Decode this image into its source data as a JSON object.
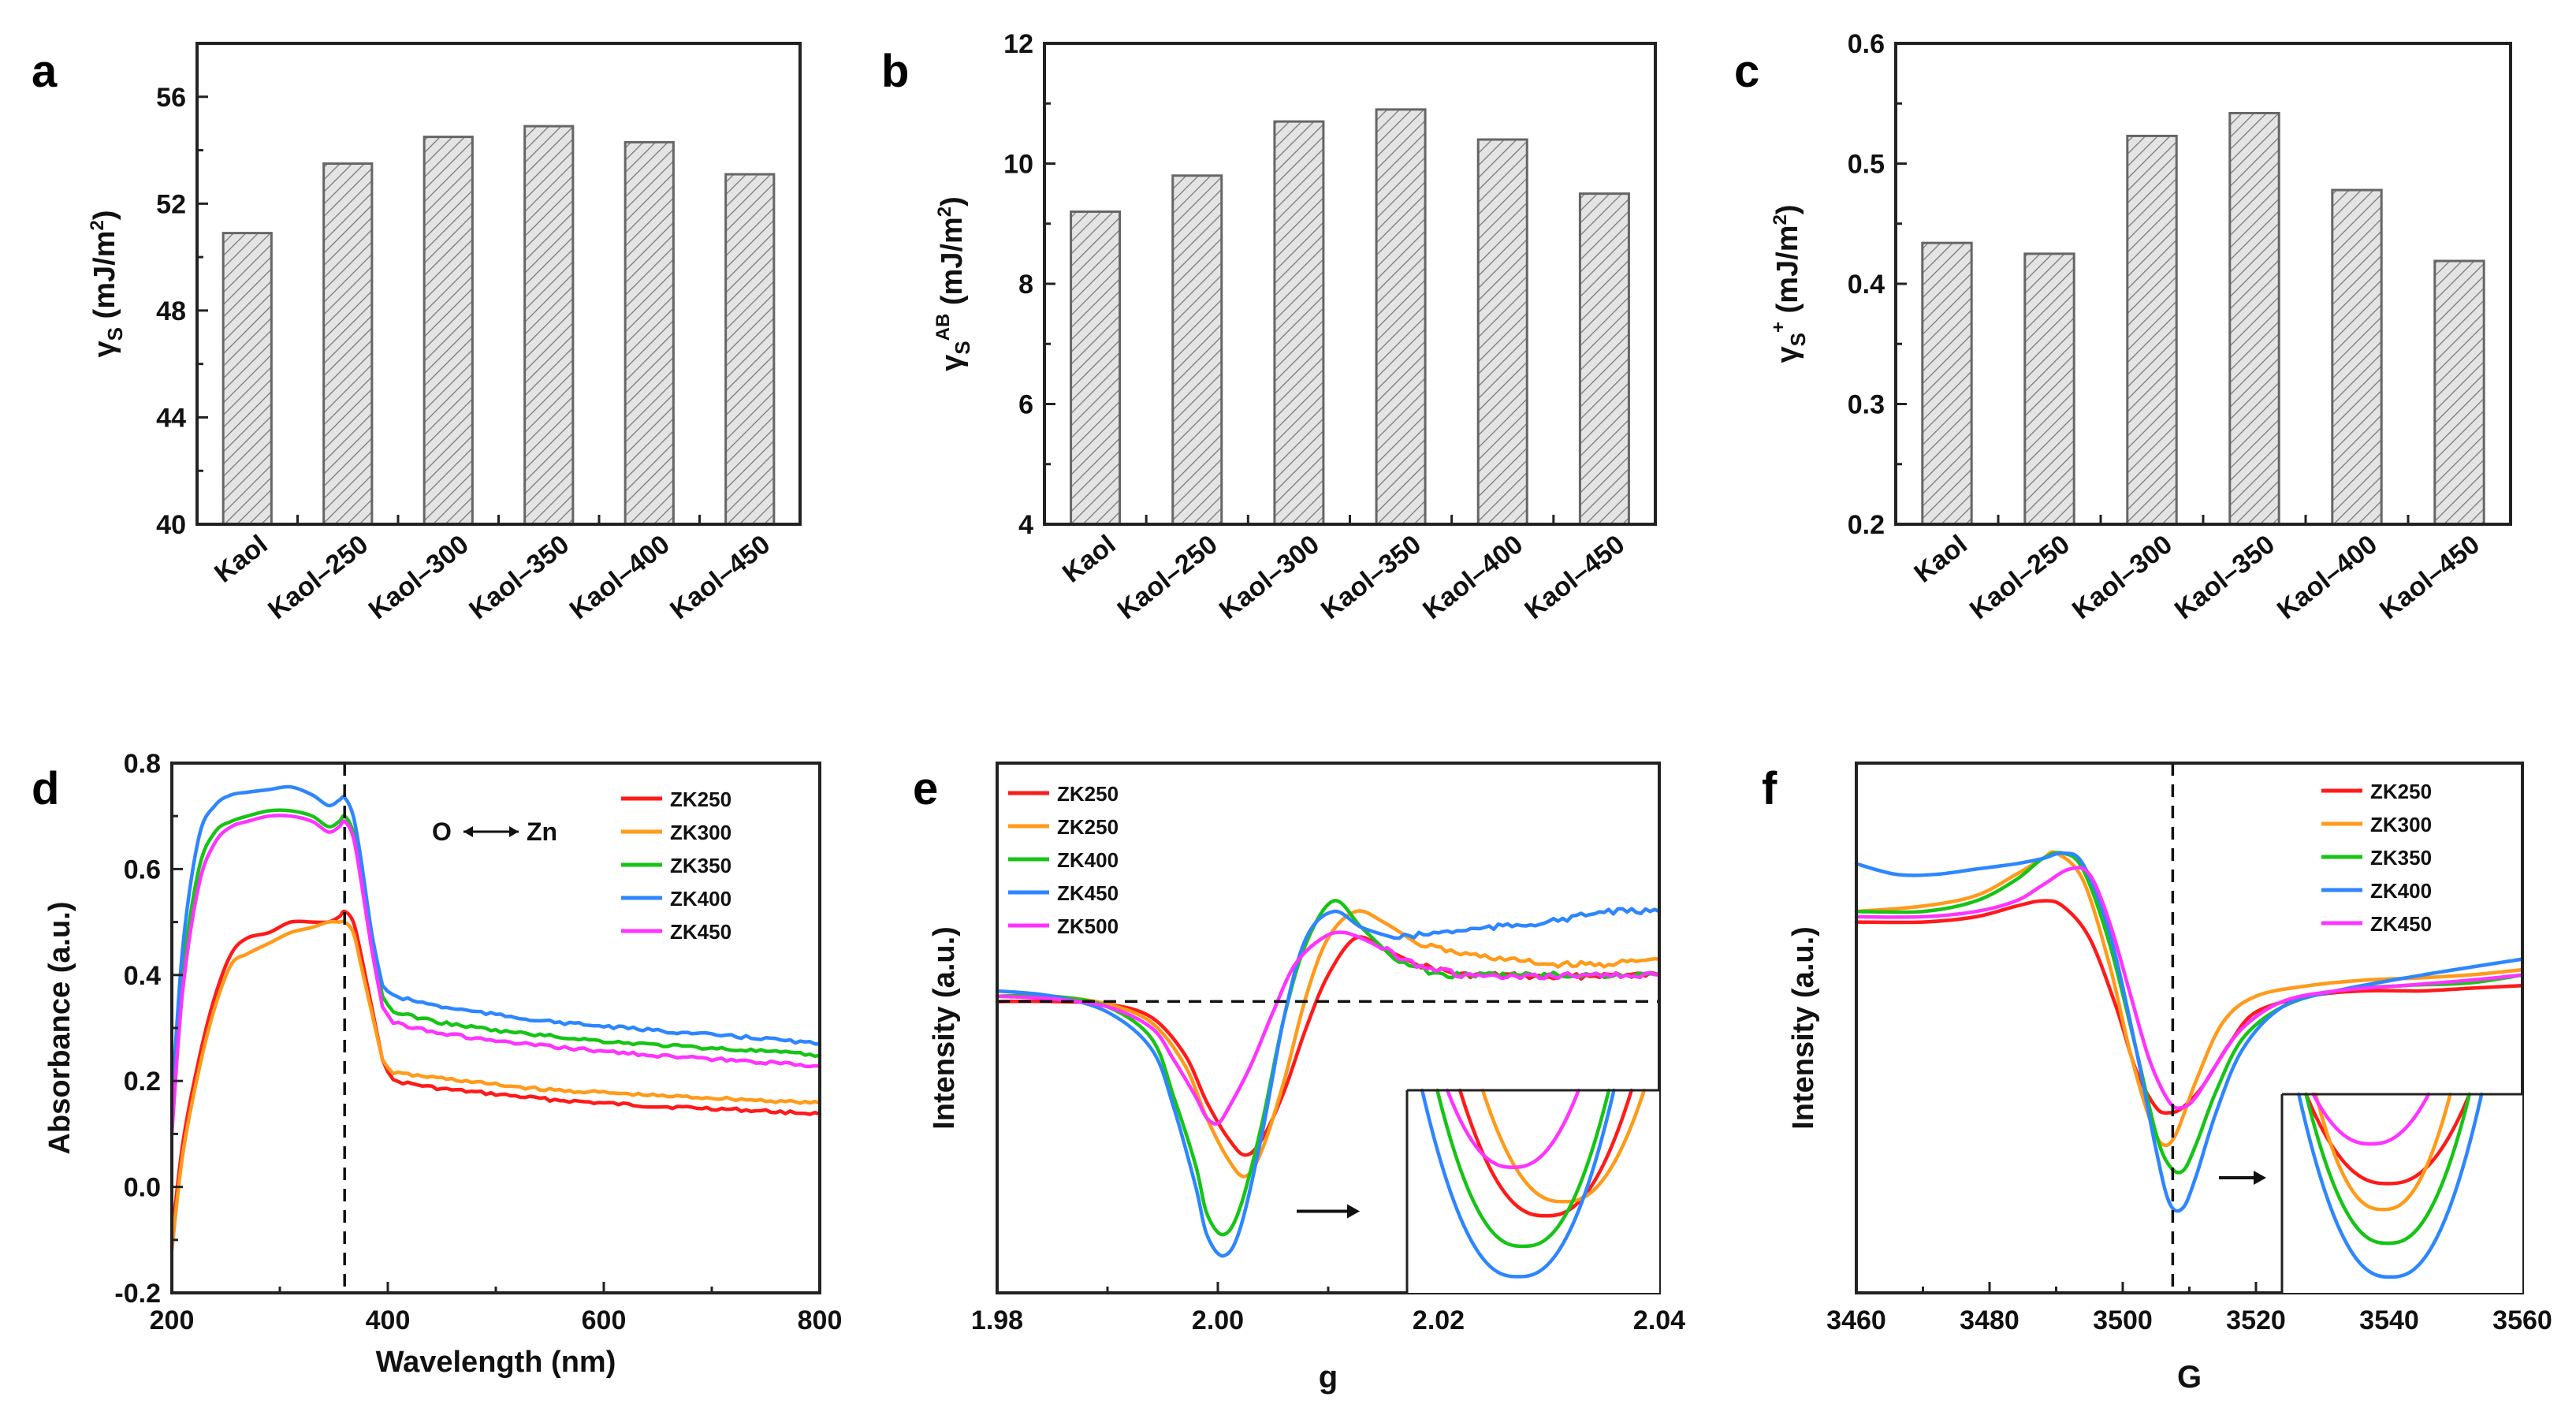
{
  "colors": {
    "bar_outline": "#6b6b6b",
    "bar_fill": "#d8d8d8",
    "ZK250": "#ff1a1a",
    "ZK300": "#ff9a1a",
    "ZK350_ZK400": "#16c416",
    "ZK400_ZK450": "#2e86ff",
    "magenta": "#ff33ff",
    "O_label": "#1f78d0",
    "Zn_label": "#f0a000"
  },
  "chart_data": [
    {
      "panel": "a",
      "type": "bar",
      "ylabel": "γS (mJ/m²)",
      "categories": [
        "Kaol",
        "Kaol-250",
        "Kaol-300",
        "Kaol-350",
        "Kaol-400",
        "Kaol-450"
      ],
      "values": [
        50.9,
        53.5,
        54.5,
        54.9,
        54.3,
        53.1
      ],
      "ylim": [
        40,
        58
      ],
      "yticks": [
        "40",
        "44",
        "48",
        "52",
        "56"
      ]
    },
    {
      "panel": "b",
      "type": "bar",
      "ylabel": "γS^AB (mJ/m²)",
      "categories": [
        "Kaol",
        "Kaol-250",
        "Kaol-300",
        "Kaol-350",
        "Kaol-400",
        "Kaol-450"
      ],
      "values": [
        9.2,
        9.8,
        10.7,
        10.9,
        10.4,
        9.5
      ],
      "ylim": [
        4,
        12
      ],
      "yticks": [
        "4",
        "6",
        "8",
        "10",
        "12"
      ]
    },
    {
      "panel": "c",
      "type": "bar",
      "ylabel": "γS⁺ (mJ/m²)",
      "categories": [
        "Kaol",
        "Kaol-250",
        "Kaol-300",
        "Kaol-350",
        "Kaol-400",
        "Kaol-450"
      ],
      "values": [
        0.434,
        0.425,
        0.523,
        0.542,
        0.478,
        0.419
      ],
      "ylim": [
        0.2,
        0.6
      ],
      "yticks": [
        "0.2",
        "0.3",
        "0.4",
        "0.5",
        "0.6"
      ]
    },
    {
      "panel": "d",
      "type": "line",
      "xlabel": "Wavelength (nm)",
      "ylabel": "Absorbance (a.u.)",
      "xlim": [
        200,
        800
      ],
      "ylim": [
        -0.2,
        0.8
      ],
      "xticks": [
        "200",
        "400",
        "600",
        "800"
      ],
      "yticks": [
        "-0.2",
        "0.0",
        "0.2",
        "0.4",
        "0.6",
        "0.8"
      ],
      "vline_x": 360,
      "annotation": {
        "left": "O",
        "right": "Zn"
      },
      "series": [
        {
          "name": "ZK250",
          "color": "#ff1a1a",
          "x": [
            200,
            210,
            225,
            240,
            255,
            270,
            290,
            310,
            330,
            345,
            355,
            360,
            368,
            375,
            385,
            395,
            405,
            450,
            500,
            550,
            600,
            650,
            700,
            750,
            800
          ],
          "y": [
            -0.1,
            0.08,
            0.24,
            0.36,
            0.44,
            0.47,
            0.48,
            0.5,
            0.5,
            0.5,
            0.51,
            0.52,
            0.5,
            0.44,
            0.34,
            0.24,
            0.2,
            0.185,
            0.175,
            0.165,
            0.158,
            0.152,
            0.148,
            0.143,
            0.138
          ]
        },
        {
          "name": "ZK300",
          "color": "#ff9a1a",
          "x": [
            200,
            210,
            225,
            240,
            255,
            270,
            290,
            310,
            330,
            345,
            355,
            360,
            368,
            375,
            385,
            395,
            405,
            450,
            500,
            550,
            600,
            650,
            700,
            750,
            800
          ],
          "y": [
            -0.12,
            0.06,
            0.22,
            0.34,
            0.42,
            0.44,
            0.46,
            0.48,
            0.49,
            0.5,
            0.5,
            0.5,
            0.48,
            0.42,
            0.33,
            0.24,
            0.215,
            0.205,
            0.193,
            0.183,
            0.178,
            0.172,
            0.168,
            0.163,
            0.158
          ]
        },
        {
          "name": "ZK350",
          "color": "#16c416",
          "x": [
            200,
            210,
            225,
            240,
            255,
            270,
            290,
            310,
            330,
            345,
            355,
            360,
            368,
            375,
            385,
            395,
            405,
            450,
            500,
            550,
            600,
            650,
            700,
            750,
            800
          ],
          "y": [
            0.12,
            0.4,
            0.6,
            0.67,
            0.69,
            0.7,
            0.71,
            0.71,
            0.7,
            0.68,
            0.69,
            0.7,
            0.67,
            0.6,
            0.47,
            0.36,
            0.33,
            0.31,
            0.295,
            0.285,
            0.275,
            0.268,
            0.262,
            0.256,
            0.248
          ]
        },
        {
          "name": "ZK400",
          "color": "#2e86ff",
          "x": [
            200,
            210,
            225,
            240,
            255,
            270,
            290,
            310,
            330,
            345,
            355,
            360,
            368,
            375,
            385,
            395,
            405,
            450,
            500,
            550,
            600,
            650,
            700,
            750,
            800
          ],
          "y": [
            0.15,
            0.45,
            0.66,
            0.72,
            0.74,
            0.745,
            0.75,
            0.755,
            0.74,
            0.72,
            0.73,
            0.735,
            0.7,
            0.62,
            0.48,
            0.38,
            0.36,
            0.34,
            0.325,
            0.312,
            0.303,
            0.295,
            0.287,
            0.28,
            0.27
          ]
        },
        {
          "name": "ZK450",
          "color": "#ff33ff",
          "x": [
            200,
            210,
            225,
            240,
            255,
            270,
            290,
            310,
            330,
            345,
            355,
            360,
            368,
            375,
            385,
            395,
            405,
            450,
            500,
            550,
            600,
            650,
            700,
            750,
            800
          ],
          "y": [
            0.1,
            0.37,
            0.57,
            0.65,
            0.68,
            0.69,
            0.7,
            0.7,
            0.69,
            0.67,
            0.68,
            0.69,
            0.66,
            0.58,
            0.45,
            0.34,
            0.31,
            0.29,
            0.275,
            0.265,
            0.256,
            0.248,
            0.241,
            0.235,
            0.228
          ]
        }
      ]
    },
    {
      "panel": "e",
      "type": "line",
      "xlabel": "g",
      "ylabel": "Intensity (a.u.)",
      "xlim": [
        1.98,
        2.04
      ],
      "ylim": [
        0,
        1
      ],
      "xticks": [
        "1.98",
        "2.00",
        "2.02",
        "2.04"
      ],
      "hline_y": 0.55,
      "inset": true,
      "series": [
        {
          "name": "ZK250",
          "color": "#ff1a1a",
          "x": [
            1.98,
            1.985,
            1.99,
            1.994,
            1.997,
            1.999,
            2.001,
            2.0025,
            2.004,
            2.006,
            2.008,
            2.01,
            2.0125,
            2.015,
            2.018,
            2.022,
            2.026,
            2.03,
            2.035,
            2.04
          ],
          "y": [
            0.55,
            0.55,
            0.545,
            0.52,
            0.45,
            0.36,
            0.29,
            0.26,
            0.29,
            0.38,
            0.5,
            0.6,
            0.67,
            0.65,
            0.62,
            0.6,
            0.6,
            0.595,
            0.6,
            0.6
          ]
        },
        {
          "name": "ZK250",
          "color": "#ff9a1a",
          "x": [
            1.98,
            1.985,
            1.99,
            1.994,
            1.997,
            1.999,
            2.001,
            2.0025,
            2.004,
            2.006,
            2.008,
            2.01,
            2.0125,
            2.015,
            2.018,
            2.022,
            2.026,
            2.03,
            2.035,
            2.04
          ],
          "y": [
            0.56,
            0.56,
            0.545,
            0.51,
            0.43,
            0.33,
            0.25,
            0.22,
            0.27,
            0.4,
            0.56,
            0.67,
            0.72,
            0.7,
            0.66,
            0.64,
            0.63,
            0.62,
            0.62,
            0.63
          ]
        },
        {
          "name": "ZK400",
          "color": "#16c416",
          "x": [
            1.98,
            1.985,
            1.99,
            1.994,
            1.996,
            1.998,
            1.999,
            2.0005,
            2.002,
            2.004,
            2.006,
            2.008,
            2.0105,
            2.013,
            2.016,
            2.02,
            2.025,
            2.03,
            2.035,
            2.04
          ],
          "y": [
            0.56,
            0.56,
            0.54,
            0.48,
            0.37,
            0.24,
            0.15,
            0.11,
            0.16,
            0.32,
            0.52,
            0.66,
            0.74,
            0.69,
            0.63,
            0.6,
            0.6,
            0.6,
            0.6,
            0.6
          ]
        },
        {
          "name": "ZK450",
          "color": "#2e86ff",
          "x": [
            1.98,
            1.985,
            1.99,
            1.994,
            1.996,
            1.998,
            1.999,
            2.0005,
            2.002,
            2.004,
            2.006,
            2.008,
            2.0105,
            2.013,
            2.016,
            2.02,
            2.025,
            2.03,
            2.035,
            2.04
          ],
          "y": [
            0.57,
            0.56,
            0.53,
            0.46,
            0.35,
            0.2,
            0.11,
            0.07,
            0.12,
            0.3,
            0.52,
            0.67,
            0.72,
            0.69,
            0.67,
            0.68,
            0.69,
            0.7,
            0.72,
            0.72
          ]
        },
        {
          "name": "ZK500",
          "color": "#ff33ff",
          "x": [
            1.98,
            1.985,
            1.99,
            1.994,
            1.996,
            1.998,
            1.999,
            2.0,
            2.001,
            2.003,
            2.005,
            2.007,
            2.0095,
            2.0115,
            2.014,
            2.018,
            2.022,
            2.027,
            2.033,
            2.04
          ],
          "y": [
            0.56,
            0.555,
            0.54,
            0.5,
            0.44,
            0.37,
            0.33,
            0.32,
            0.35,
            0.43,
            0.53,
            0.62,
            0.67,
            0.68,
            0.66,
            0.62,
            0.6,
            0.595,
            0.6,
            0.6
          ]
        }
      ]
    },
    {
      "panel": "f",
      "type": "line",
      "xlabel": "G",
      "ylabel": "Intensity (a.u.)",
      "xlim": [
        3460,
        3560
      ],
      "ylim": [
        0,
        1
      ],
      "xticks": [
        "3460",
        "3480",
        "3500",
        "3520",
        "3540",
        "3560"
      ],
      "vline_x": 3507.5,
      "inset": true,
      "series": [
        {
          "name": "ZK250",
          "color": "#ff1a1a",
          "x": [
            3460,
            3470,
            3478,
            3484,
            3488,
            3491,
            3495,
            3499,
            3502,
            3505,
            3507,
            3509,
            3512,
            3516,
            3520,
            3528,
            3536,
            3545,
            3552,
            3560
          ],
          "y": [
            0.7,
            0.7,
            0.71,
            0.73,
            0.74,
            0.73,
            0.67,
            0.54,
            0.42,
            0.35,
            0.34,
            0.35,
            0.39,
            0.47,
            0.53,
            0.56,
            0.57,
            0.57,
            0.575,
            0.58
          ]
        },
        {
          "name": "ZK300",
          "color": "#ff9a1a",
          "x": [
            3460,
            3470,
            3478,
            3484,
            3488,
            3490,
            3494,
            3498,
            3501,
            3504,
            3506,
            3508,
            3511,
            3515,
            3520,
            3528,
            3536,
            3545,
            3552,
            3560
          ],
          "y": [
            0.72,
            0.73,
            0.75,
            0.79,
            0.82,
            0.83,
            0.78,
            0.62,
            0.46,
            0.33,
            0.28,
            0.3,
            0.4,
            0.51,
            0.56,
            0.58,
            0.59,
            0.595,
            0.6,
            0.61
          ]
        },
        {
          "name": "ZK350",
          "color": "#16c416",
          "x": [
            3460,
            3470,
            3478,
            3484,
            3488,
            3491,
            3494,
            3498,
            3502,
            3505,
            3507,
            3509,
            3511,
            3514,
            3518,
            3524,
            3532,
            3542,
            3552,
            3560
          ],
          "y": [
            0.72,
            0.72,
            0.74,
            0.78,
            0.82,
            0.83,
            0.8,
            0.66,
            0.46,
            0.3,
            0.24,
            0.23,
            0.28,
            0.38,
            0.48,
            0.54,
            0.57,
            0.58,
            0.585,
            0.6
          ]
        },
        {
          "name": "ZK400",
          "color": "#2e86ff",
          "x": [
            3460,
            3466,
            3472,
            3478,
            3484,
            3488,
            3491,
            3494,
            3498,
            3502,
            3505,
            3507,
            3509,
            3511,
            3514,
            3518,
            3524,
            3532,
            3545,
            3560
          ],
          "y": [
            0.81,
            0.79,
            0.79,
            0.8,
            0.81,
            0.82,
            0.83,
            0.81,
            0.68,
            0.46,
            0.27,
            0.17,
            0.16,
            0.22,
            0.34,
            0.46,
            0.54,
            0.57,
            0.6,
            0.63
          ]
        },
        {
          "name": "ZK450",
          "color": "#ff33ff",
          "x": [
            3460,
            3470,
            3478,
            3484,
            3488,
            3492,
            3495,
            3498,
            3501,
            3504,
            3507,
            3509,
            3511,
            3514,
            3518,
            3524,
            3532,
            3542,
            3552,
            3560
          ],
          "y": [
            0.71,
            0.71,
            0.72,
            0.74,
            0.77,
            0.8,
            0.79,
            0.7,
            0.57,
            0.44,
            0.36,
            0.35,
            0.37,
            0.43,
            0.5,
            0.55,
            0.57,
            0.58,
            0.59,
            0.6
          ]
        }
      ]
    }
  ]
}
